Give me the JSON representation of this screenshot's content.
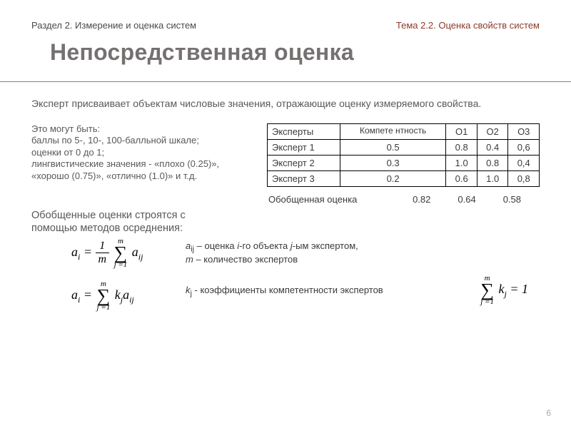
{
  "header": {
    "left": "Раздел 2. Измерение и оценка систем",
    "right": "Тема 2.2. Оценка свойств систем"
  },
  "title": "Непосредственная оценка",
  "intro": "Эксперт присваивает объектам числовые значения, отражающие оценку измеряемого свойства.",
  "left_block": {
    "l1": "Это могут быть:",
    "l2": "баллы по 5-, 10-, 100-балльной шкале;",
    "l3": "оценки от 0 до 1;",
    "l4": "лингвистические значения - «плохо (0.25)», «хорошо (0.75)», «отлично (1.0)» и т.д."
  },
  "table": {
    "h1": "Эксперты",
    "h2": "Компете нтность",
    "h3": "О1",
    "h4": "О2",
    "h5": "О3",
    "r1c1": "Эксперт 1",
    "r1c2": "0.5",
    "r1c3": "0.8",
    "r1c4": "0.4",
    "r1c5": "0,6",
    "r2c1": "Эксперт 2",
    "r2c2": "0.3",
    "r2c3": "1.0",
    "r2c4": "0.8",
    "r2c5": "0,4",
    "r3c1": "Эксперт 3",
    "r3c2": "0.2",
    "r3c3": "0.6",
    "r3c4": "1.0",
    "r3c5": "0,8"
  },
  "summary": {
    "label": "Обобщенная оценка",
    "v1": "0.82",
    "v2": "0.64",
    "v3": "0.58"
  },
  "avg_text": "Обобщенные оценки строятся с помощью методов осреднения:",
  "formula_desc": {
    "d1a": "a",
    "d1a_sub": "ij",
    "d1b": " – оценка ",
    "d1c": "i",
    "d1d": "-го объекта ",
    "d1e": "j",
    "d1f": "-ым экспертом,",
    "d2a": "m",
    "d2b": " – количество экспертов",
    "d3a": "k",
    "d3a_sub": "j",
    "d3b": " - коэффициенты компетентности экспертов"
  },
  "math": {
    "a": "a",
    "i": "i",
    "eq": " = ",
    "one": "1",
    "m": "m",
    "sum_top": "m",
    "sum_sym": "∑",
    "sum_bot": "j =1",
    "aij": "a",
    "ij": "ij",
    "k": "k",
    "j": "j",
    "eq1": " = 1"
  },
  "page_number": "6",
  "colors": {
    "header_right": "#8a3a2a",
    "title_color": "#767171",
    "text_color": "#585858",
    "border": "#000000",
    "bg": "#ffffff",
    "pagenum": "#a8a8a8"
  }
}
